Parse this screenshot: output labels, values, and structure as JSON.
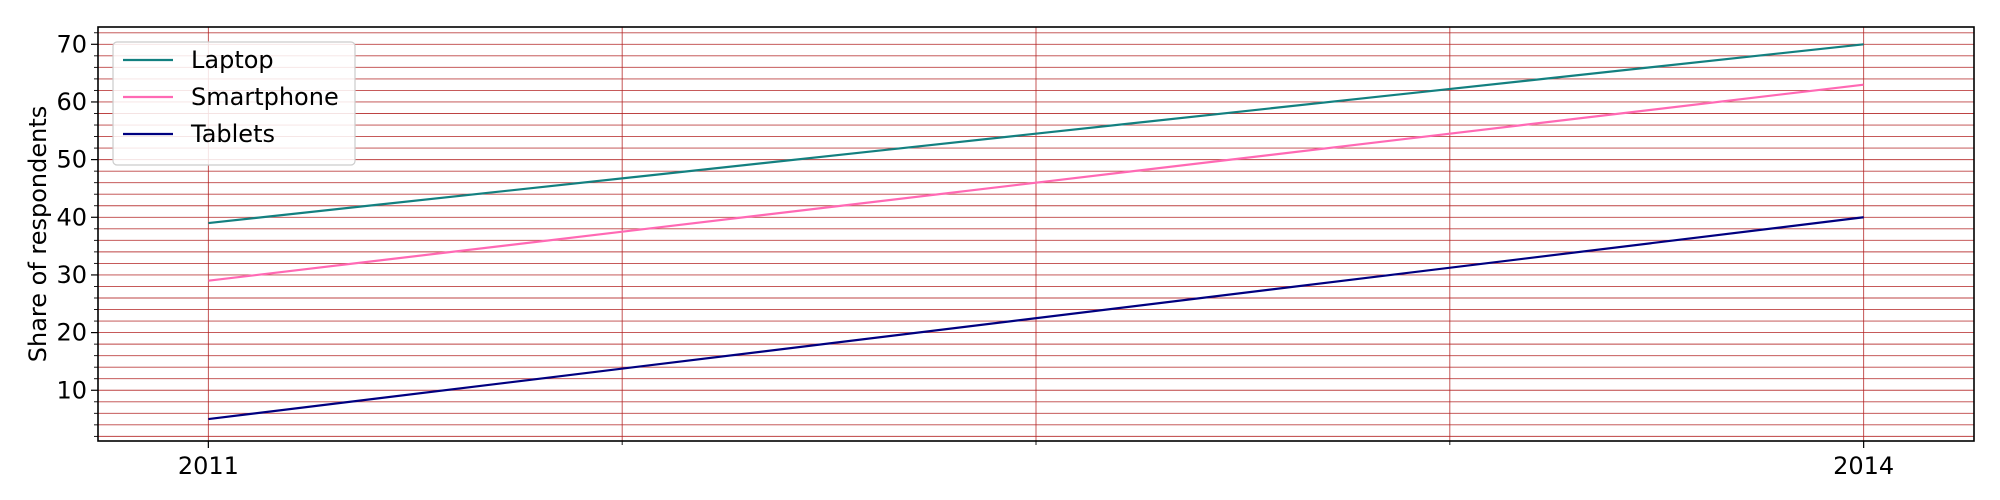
{
  "chart_data": {
    "type": "line",
    "x": [
      2011,
      2014
    ],
    "x_tick_labels": [
      "2011",
      "2014"
    ],
    "ylabel": "Share of respondents",
    "ylim": [
      1.2,
      73.0
    ],
    "y_ticks": [
      10,
      20,
      30,
      40,
      50,
      60,
      70
    ],
    "grid": true,
    "grid_color": "#b22222",
    "legend_position": "top-left",
    "series": [
      {
        "name": "Laptop",
        "values": [
          39,
          70
        ],
        "color": "#138080"
      },
      {
        "name": "Smartphone",
        "values": [
          29,
          63
        ],
        "color": "#ff69b4"
      },
      {
        "name": "Tablets",
        "values": [
          5,
          40
        ],
        "color": "#000080"
      }
    ]
  }
}
